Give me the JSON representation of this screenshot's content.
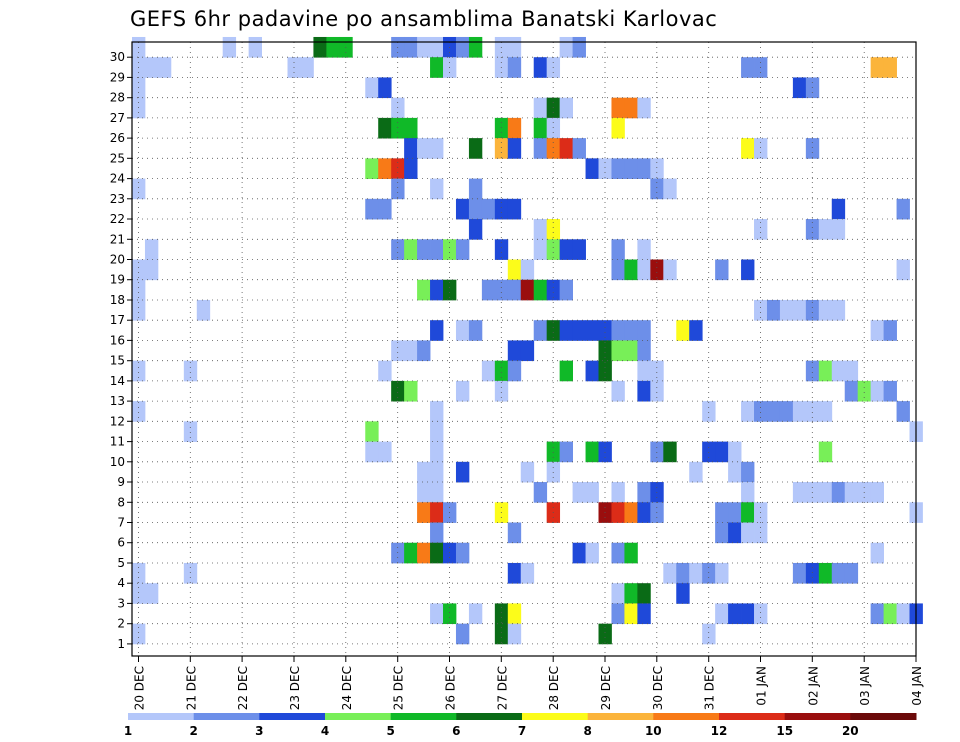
{
  "chart_data": {
    "type": "heatmap",
    "title": "GEFS 6hr padavine po ansamblima Banatski Karlovac",
    "xlabel": "",
    "ylabel": "",
    "y_labels": [
      "1",
      "2",
      "3",
      "4",
      "5",
      "6",
      "7",
      "8",
      "9",
      "10",
      "11",
      "12",
      "13",
      "14",
      "15",
      "16",
      "17",
      "18",
      "19",
      "20",
      "21",
      "22",
      "23",
      "24",
      "25",
      "26",
      "27",
      "28",
      "29",
      "30"
    ],
    "x_labels": [
      "20 DEC",
      "21 DEC",
      "22 DEC",
      "23 DEC",
      "24 DEC",
      "25 DEC",
      "26 DEC",
      "27 DEC",
      "28 DEC",
      "29 DEC",
      "30 DEC",
      "31 DEC",
      "01 JAN",
      "02 JAN",
      "03 JAN",
      "04 JAN"
    ],
    "time_steps_per_day": 4,
    "grid": "dotted",
    "colorbar": {
      "ticks": [
        "1",
        "2",
        "3",
        "4",
        "5",
        "6",
        "7",
        "8",
        "10",
        "12",
        "15",
        "20"
      ],
      "colors": [
        "#b4c7fa",
        "#6d8fe9",
        "#1f49d9",
        "#78ef58",
        "#10b928",
        "#0a6b16",
        "#fcfc1a",
        "#fbb43b",
        "#f87a17",
        "#dc2c18",
        "#9a0e0e"
      ]
    },
    "cells": [
      [
        30,
        0,
        1
      ],
      [
        30,
        7,
        1
      ],
      [
        30,
        9,
        1
      ],
      [
        30,
        14,
        6
      ],
      [
        30,
        15,
        5
      ],
      [
        30,
        16,
        5
      ],
      [
        30,
        20,
        2
      ],
      [
        30,
        21,
        2
      ],
      [
        30,
        22,
        1
      ],
      [
        30,
        23,
        1
      ],
      [
        30,
        24,
        3
      ],
      [
        30,
        25,
        2
      ],
      [
        30,
        26,
        5
      ],
      [
        30,
        28,
        1
      ],
      [
        30,
        29,
        1
      ],
      [
        30,
        33,
        1
      ],
      [
        30,
        34,
        2
      ],
      [
        29,
        0,
        1
      ],
      [
        29,
        1,
        1
      ],
      [
        29,
        2,
        1
      ],
      [
        29,
        12,
        1
      ],
      [
        29,
        13,
        1
      ],
      [
        29,
        23,
        5
      ],
      [
        29,
        24,
        1
      ],
      [
        29,
        28,
        1
      ],
      [
        29,
        29,
        2
      ],
      [
        29,
        31,
        3
      ],
      [
        29,
        32,
        1
      ],
      [
        29,
        47,
        2
      ],
      [
        29,
        48,
        2
      ],
      [
        29,
        57,
        8
      ],
      [
        29,
        58,
        8
      ],
      [
        28,
        0,
        1
      ],
      [
        28,
        18,
        1
      ],
      [
        28,
        19,
        3
      ],
      [
        28,
        51,
        3
      ],
      [
        28,
        52,
        2
      ],
      [
        27,
        0,
        1
      ],
      [
        27,
        20,
        1
      ],
      [
        27,
        31,
        1
      ],
      [
        27,
        32,
        6
      ],
      [
        27,
        33,
        1
      ],
      [
        27,
        37,
        9
      ],
      [
        27,
        38,
        9
      ],
      [
        27,
        39,
        1
      ],
      [
        26,
        19,
        6
      ],
      [
        26,
        20,
        5
      ],
      [
        26,
        21,
        5
      ],
      [
        26,
        28,
        5
      ],
      [
        26,
        29,
        9
      ],
      [
        26,
        31,
        5
      ],
      [
        26,
        32,
        1
      ],
      [
        26,
        37,
        7
      ],
      [
        25,
        21,
        3
      ],
      [
        25,
        22,
        1
      ],
      [
        25,
        23,
        1
      ],
      [
        25,
        26,
        6
      ],
      [
        25,
        28,
        8
      ],
      [
        25,
        29,
        3
      ],
      [
        25,
        31,
        2
      ],
      [
        25,
        32,
        9
      ],
      [
        25,
        33,
        10
      ],
      [
        25,
        34,
        2
      ],
      [
        25,
        47,
        7
      ],
      [
        25,
        48,
        1
      ],
      [
        25,
        52,
        2
      ],
      [
        24,
        18,
        4
      ],
      [
        24,
        19,
        9
      ],
      [
        24,
        20,
        10
      ],
      [
        24,
        21,
        3
      ],
      [
        24,
        35,
        3
      ],
      [
        24,
        36,
        1
      ],
      [
        24,
        37,
        2
      ],
      [
        24,
        38,
        2
      ],
      [
        24,
        39,
        2
      ],
      [
        24,
        40,
        1
      ],
      [
        23,
        0,
        1
      ],
      [
        23,
        20,
        2
      ],
      [
        23,
        23,
        1
      ],
      [
        23,
        26,
        2
      ],
      [
        23,
        40,
        2
      ],
      [
        23,
        41,
        1
      ],
      [
        22,
        18,
        2
      ],
      [
        22,
        19,
        2
      ],
      [
        22,
        25,
        3
      ],
      [
        22,
        26,
        2
      ],
      [
        22,
        27,
        2
      ],
      [
        22,
        28,
        3
      ],
      [
        22,
        29,
        3
      ],
      [
        22,
        54,
        3
      ],
      [
        22,
        59,
        2
      ],
      [
        21,
        26,
        3
      ],
      [
        21,
        31,
        1
      ],
      [
        21,
        32,
        7
      ],
      [
        21,
        48,
        1
      ],
      [
        21,
        52,
        2
      ],
      [
        21,
        53,
        1
      ],
      [
        21,
        54,
        1
      ],
      [
        20,
        1,
        1
      ],
      [
        20,
        20,
        2
      ],
      [
        20,
        21,
        4
      ],
      [
        20,
        22,
        2
      ],
      [
        20,
        23,
        2
      ],
      [
        20,
        24,
        4
      ],
      [
        20,
        25,
        2
      ],
      [
        20,
        28,
        3
      ],
      [
        20,
        31,
        1
      ],
      [
        20,
        32,
        4
      ],
      [
        20,
        33,
        3
      ],
      [
        20,
        34,
        3
      ],
      [
        20,
        37,
        2
      ],
      [
        20,
        39,
        1
      ],
      [
        19,
        0,
        1
      ],
      [
        19,
        1,
        1
      ],
      [
        19,
        29,
        7
      ],
      [
        19,
        30,
        1
      ],
      [
        19,
        37,
        2
      ],
      [
        19,
        38,
        5
      ],
      [
        19,
        39,
        1
      ],
      [
        19,
        40,
        11
      ],
      [
        19,
        41,
        1
      ],
      [
        19,
        45,
        2
      ],
      [
        19,
        47,
        3
      ],
      [
        19,
        59,
        1
      ],
      [
        18,
        0,
        1
      ],
      [
        18,
        22,
        4
      ],
      [
        18,
        23,
        3
      ],
      [
        18,
        24,
        6
      ],
      [
        18,
        27,
        2
      ],
      [
        18,
        28,
        2
      ],
      [
        18,
        29,
        2
      ],
      [
        18,
        30,
        11
      ],
      [
        18,
        31,
        5
      ],
      [
        18,
        32,
        3
      ],
      [
        18,
        33,
        2
      ],
      [
        17,
        0,
        1
      ],
      [
        17,
        5,
        1
      ],
      [
        17,
        48,
        1
      ],
      [
        17,
        49,
        2
      ],
      [
        17,
        50,
        1
      ],
      [
        17,
        51,
        1
      ],
      [
        17,
        52,
        2
      ],
      [
        17,
        53,
        1
      ],
      [
        17,
        54,
        1
      ],
      [
        16,
        23,
        3
      ],
      [
        16,
        25,
        1
      ],
      [
        16,
        26,
        2
      ],
      [
        16,
        31,
        2
      ],
      [
        16,
        32,
        6
      ],
      [
        16,
        33,
        3
      ],
      [
        16,
        34,
        3
      ],
      [
        16,
        35,
        3
      ],
      [
        16,
        36,
        3
      ],
      [
        16,
        37,
        2
      ],
      [
        16,
        38,
        2
      ],
      [
        16,
        39,
        2
      ],
      [
        16,
        42,
        7
      ],
      [
        16,
        43,
        3
      ],
      [
        16,
        57,
        1
      ],
      [
        16,
        58,
        2
      ],
      [
        15,
        20,
        1
      ],
      [
        15,
        21,
        1
      ],
      [
        15,
        22,
        2
      ],
      [
        15,
        29,
        3
      ],
      [
        15,
        30,
        3
      ],
      [
        15,
        36,
        6
      ],
      [
        15,
        37,
        4
      ],
      [
        15,
        38,
        4
      ],
      [
        15,
        39,
        2
      ],
      [
        14,
        0,
        1
      ],
      [
        14,
        4,
        1
      ],
      [
        14,
        19,
        1
      ],
      [
        14,
        27,
        1
      ],
      [
        14,
        28,
        5
      ],
      [
        14,
        29,
        2
      ],
      [
        14,
        33,
        5
      ],
      [
        14,
        35,
        3
      ],
      [
        14,
        36,
        6
      ],
      [
        14,
        39,
        1
      ],
      [
        14,
        40,
        1
      ],
      [
        14,
        52,
        2
      ],
      [
        14,
        53,
        4
      ],
      [
        14,
        54,
        1
      ],
      [
        14,
        55,
        1
      ],
      [
        13,
        20,
        6
      ],
      [
        13,
        21,
        4
      ],
      [
        13,
        25,
        1
      ],
      [
        13,
        28,
        1
      ],
      [
        13,
        37,
        1
      ],
      [
        13,
        39,
        3
      ],
      [
        13,
        40,
        1
      ],
      [
        13,
        55,
        2
      ],
      [
        13,
        56,
        4
      ],
      [
        13,
        57,
        1
      ],
      [
        13,
        58,
        2
      ],
      [
        12,
        0,
        1
      ],
      [
        12,
        23,
        1
      ],
      [
        12,
        44,
        1
      ],
      [
        12,
        47,
        1
      ],
      [
        12,
        48,
        2
      ],
      [
        12,
        49,
        2
      ],
      [
        12,
        50,
        2
      ],
      [
        12,
        51,
        1
      ],
      [
        12,
        52,
        1
      ],
      [
        12,
        53,
        1
      ],
      [
        12,
        59,
        2
      ],
      [
        11,
        4,
        1
      ],
      [
        11,
        23,
        1
      ],
      [
        11,
        18,
        4
      ],
      [
        11,
        60,
        1
      ],
      [
        10,
        18,
        1
      ],
      [
        10,
        19,
        1
      ],
      [
        10,
        23,
        1
      ],
      [
        10,
        32,
        5
      ],
      [
        10,
        33,
        2
      ],
      [
        10,
        35,
        5
      ],
      [
        10,
        36,
        3
      ],
      [
        10,
        40,
        2
      ],
      [
        10,
        41,
        6
      ],
      [
        10,
        44,
        3
      ],
      [
        10,
        45,
        3
      ],
      [
        10,
        46,
        1
      ],
      [
        10,
        53,
        4
      ],
      [
        9,
        22,
        1
      ],
      [
        9,
        23,
        1
      ],
      [
        9,
        25,
        3
      ],
      [
        9,
        30,
        1
      ],
      [
        9,
        32,
        1
      ],
      [
        9,
        43,
        1
      ],
      [
        9,
        46,
        1
      ],
      [
        9,
        47,
        2
      ],
      [
        8,
        22,
        1
      ],
      [
        8,
        23,
        1
      ],
      [
        8,
        31,
        2
      ],
      [
        8,
        34,
        1
      ],
      [
        8,
        35,
        1
      ],
      [
        8,
        37,
        1
      ],
      [
        8,
        39,
        2
      ],
      [
        8,
        40,
        3
      ],
      [
        8,
        47,
        1
      ],
      [
        8,
        51,
        1
      ],
      [
        8,
        52,
        1
      ],
      [
        8,
        53,
        1
      ],
      [
        8,
        54,
        2
      ],
      [
        8,
        55,
        1
      ],
      [
        8,
        56,
        1
      ],
      [
        8,
        57,
        1
      ],
      [
        7,
        22,
        9
      ],
      [
        7,
        23,
        10
      ],
      [
        7,
        24,
        2
      ],
      [
        7,
        28,
        7
      ],
      [
        7,
        32,
        10
      ],
      [
        7,
        36,
        11
      ],
      [
        7,
        37,
        10
      ],
      [
        7,
        38,
        9
      ],
      [
        7,
        39,
        3
      ],
      [
        7,
        40,
        2
      ],
      [
        7,
        45,
        2
      ],
      [
        7,
        46,
        2
      ],
      [
        7,
        47,
        5
      ],
      [
        7,
        48,
        1
      ],
      [
        7,
        60,
        1
      ],
      [
        6,
        23,
        2
      ],
      [
        6,
        29,
        2
      ],
      [
        6,
        45,
        2
      ],
      [
        6,
        46,
        3
      ],
      [
        6,
        47,
        1
      ],
      [
        6,
        48,
        1
      ],
      [
        5,
        20,
        2
      ],
      [
        5,
        21,
        5
      ],
      [
        5,
        22,
        9
      ],
      [
        5,
        23,
        6
      ],
      [
        5,
        24,
        3
      ],
      [
        5,
        25,
        2
      ],
      [
        5,
        34,
        3
      ],
      [
        5,
        35,
        1
      ],
      [
        5,
        37,
        2
      ],
      [
        5,
        38,
        5
      ],
      [
        5,
        57,
        1
      ],
      [
        4,
        0,
        1
      ],
      [
        4,
        4,
        1
      ],
      [
        4,
        29,
        3
      ],
      [
        4,
        30,
        1
      ],
      [
        4,
        41,
        1
      ],
      [
        4,
        42,
        2
      ],
      [
        4,
        43,
        1
      ],
      [
        4,
        44,
        2
      ],
      [
        4,
        45,
        1
      ],
      [
        4,
        51,
        2
      ],
      [
        4,
        52,
        3
      ],
      [
        4,
        53,
        5
      ],
      [
        4,
        54,
        2
      ],
      [
        4,
        55,
        2
      ],
      [
        3,
        0,
        1
      ],
      [
        3,
        1,
        1
      ],
      [
        3,
        37,
        1
      ],
      [
        3,
        38,
        5
      ],
      [
        3,
        39,
        6
      ],
      [
        3,
        42,
        3
      ],
      [
        2,
        23,
        1
      ],
      [
        2,
        24,
        5
      ],
      [
        2,
        26,
        1
      ],
      [
        2,
        28,
        6
      ],
      [
        2,
        29,
        7
      ],
      [
        2,
        37,
        2
      ],
      [
        2,
        38,
        7
      ],
      [
        2,
        39,
        3
      ],
      [
        2,
        45,
        1
      ],
      [
        2,
        46,
        3
      ],
      [
        2,
        47,
        3
      ],
      [
        2,
        48,
        1
      ],
      [
        2,
        57,
        2
      ],
      [
        2,
        58,
        4
      ],
      [
        2,
        59,
        1
      ],
      [
        2,
        60,
        3
      ],
      [
        1,
        0,
        1
      ],
      [
        1,
        25,
        2
      ],
      [
        1,
        28,
        6
      ],
      [
        1,
        29,
        1
      ],
      [
        1,
        36,
        6
      ],
      [
        1,
        44,
        1
      ]
    ]
  }
}
